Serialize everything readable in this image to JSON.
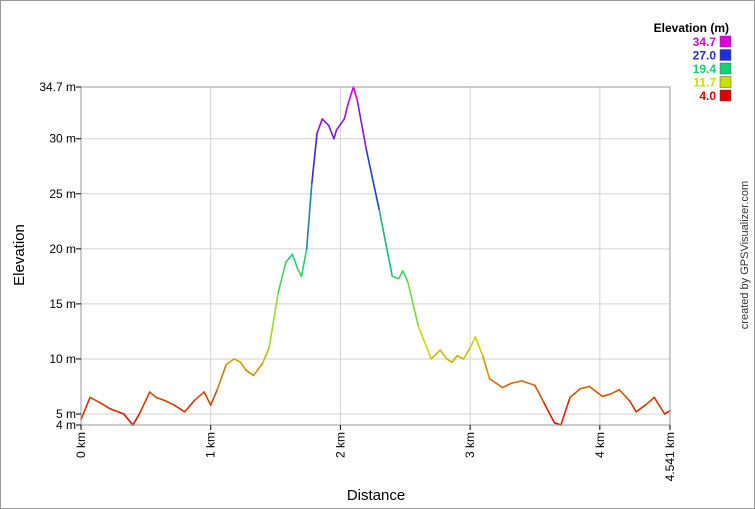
{
  "chart_data": {
    "type": "line",
    "xlabel": "Distance",
    "ylabel": "Elevation",
    "xlim": [
      0,
      4.541
    ],
    "ylim": [
      4.0,
      34.7
    ],
    "x_ticks": [
      {
        "value": 0,
        "label": "0 km"
      },
      {
        "value": 1,
        "label": "1 km"
      },
      {
        "value": 2,
        "label": "2 km"
      },
      {
        "value": 3,
        "label": "3 km"
      },
      {
        "value": 4,
        "label": "4 km"
      },
      {
        "value": 4.541,
        "label": "4.541 km"
      }
    ],
    "y_ticks": [
      {
        "value": 4.0,
        "label": "4 m"
      },
      {
        "value": 5,
        "label": "5 m"
      },
      {
        "value": 10,
        "label": "10 m"
      },
      {
        "value": 15,
        "label": "15 m"
      },
      {
        "value": 20,
        "label": "20 m"
      },
      {
        "value": 25,
        "label": "25 m"
      },
      {
        "value": 30,
        "label": "30 m"
      },
      {
        "value": 34.7,
        "label": "34.7 m"
      }
    ],
    "grid": true,
    "legend": {
      "title": "Elevation (m)",
      "placement": "top-right",
      "entries": [
        {
          "label": "34.7",
          "color": "#dd00dd"
        },
        {
          "label": "27.0",
          "color": "#1c30d8"
        },
        {
          "label": "19.4",
          "color": "#16d076"
        },
        {
          "label": "11.7",
          "color": "#c6e000"
        },
        {
          "label": "4.0",
          "color": "#dd0000"
        }
      ]
    },
    "series": [
      {
        "x": [
          0,
          0.07,
          0.15,
          0.22,
          0.33,
          0.4,
          0.45,
          0.53,
          0.58,
          0.65,
          0.72,
          0.8,
          0.88,
          0.95,
          1.0,
          1.05,
          1.12,
          1.18,
          1.23,
          1.27,
          1.33,
          1.4,
          1.45,
          1.52,
          1.58,
          1.63,
          1.67,
          1.7,
          1.74,
          1.78,
          1.82,
          1.86,
          1.91,
          1.95,
          1.97,
          2.0,
          2.03,
          2.06,
          2.1,
          2.13,
          2.2,
          2.3,
          2.4,
          2.45,
          2.48,
          2.52,
          2.6,
          2.7,
          2.77,
          2.82,
          2.86,
          2.9,
          2.95,
          3.0,
          3.04,
          3.1,
          3.15,
          3.25,
          3.32,
          3.4,
          3.5,
          3.57,
          3.65,
          3.7,
          3.77,
          3.85,
          3.92,
          4.02,
          4.08,
          4.15,
          4.23,
          4.28,
          4.35,
          4.42,
          4.5,
          4.541
        ],
        "y": [
          4.5,
          6.5,
          6.0,
          5.5,
          5.0,
          4.0,
          5.0,
          7.0,
          6.5,
          6.2,
          5.8,
          5.2,
          6.3,
          7.0,
          5.8,
          7.2,
          9.5,
          10.0,
          9.7,
          9.0,
          8.5,
          9.6,
          11.0,
          16.0,
          18.8,
          19.5,
          18.2,
          17.5,
          20.0,
          26.0,
          30.5,
          31.8,
          31.2,
          30.0,
          30.8,
          31.3,
          31.8,
          33.2,
          34.7,
          33.5,
          29.0,
          23.5,
          17.5,
          17.3,
          18.0,
          17.0,
          13.0,
          10.0,
          10.8,
          10.0,
          9.7,
          10.3,
          10.0,
          11.0,
          12.0,
          10.2,
          8.2,
          7.4,
          7.8,
          8.0,
          7.6,
          6.0,
          4.2,
          4.0,
          6.5,
          7.3,
          7.5,
          6.6,
          6.8,
          7.2,
          6.2,
          5.2,
          5.8,
          6.5,
          5.0,
          5.3
        ]
      }
    ]
  },
  "watermark": "created by GPSVisualizer.com"
}
